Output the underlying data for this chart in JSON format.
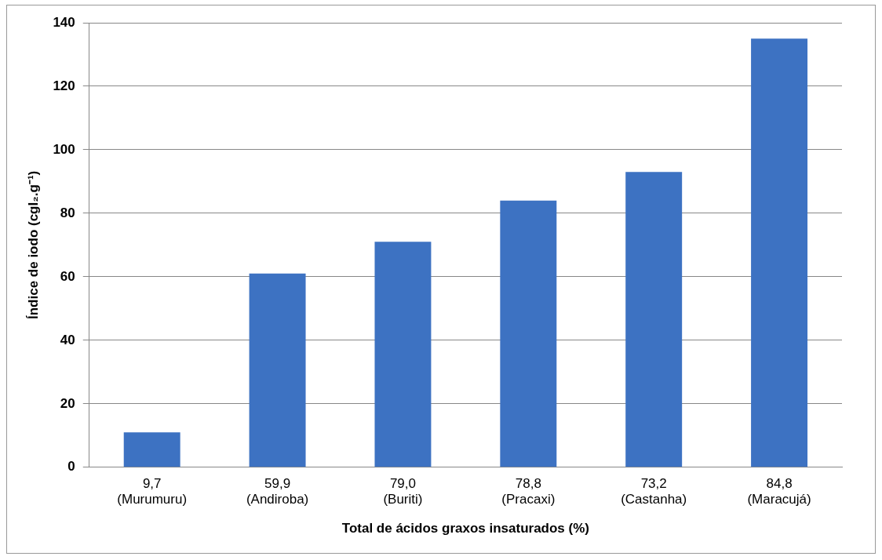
{
  "chart_data": {
    "type": "bar",
    "categories": [
      "9,7\n(Murumuru)",
      "59,9\n(Andiroba)",
      "79,0\n(Buriti)",
      "78,8\n(Pracaxi)",
      "73,2\n(Castanha)",
      "84,8\n(Maracujá)"
    ],
    "values": [
      11,
      61,
      71,
      84,
      93,
      135
    ],
    "color": "#3d72c2",
    "xlabel": "Total de ácidos graxos insaturados (%)",
    "ylabel": "Índice de iodo (cgI₂.g⁻¹)",
    "ylim": [
      0,
      140
    ],
    "yticks": [
      0,
      20,
      40,
      60,
      80,
      100,
      120,
      140
    ],
    "grid": "y",
    "legend": false
  }
}
